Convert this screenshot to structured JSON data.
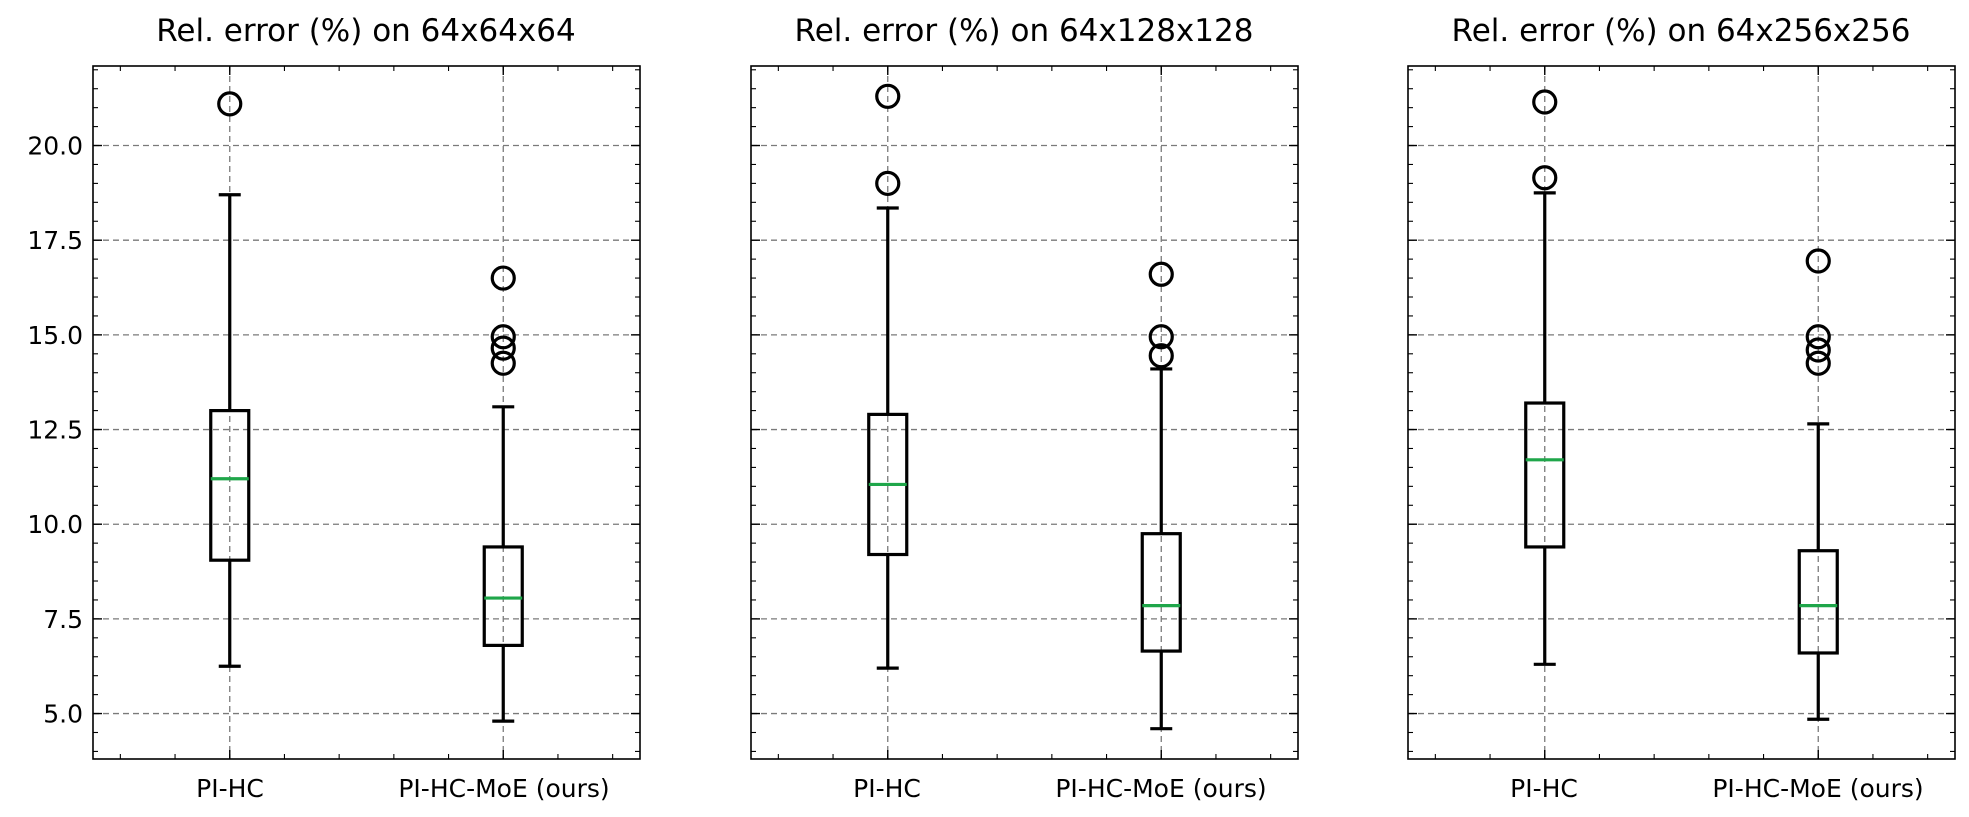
{
  "chart_data": [
    {
      "type": "box",
      "title": "Rel. error (%) on 64x64x64",
      "categories": [
        "PI-HC",
        "PI-HC-MoE (ours)"
      ],
      "ylim": [
        3.8,
        22.1
      ],
      "yticks": [
        5.0,
        7.5,
        10.0,
        12.5,
        15.0,
        17.5,
        20.0
      ],
      "ytick_labels": [
        "5.0",
        "7.5",
        "10.0",
        "12.5",
        "15.0",
        "17.5",
        "20.0"
      ],
      "show_yticklabels": true,
      "grid": true,
      "boxes": [
        {
          "category": "PI-HC",
          "whisker_low": 6.25,
          "q1": 9.05,
          "median": 11.2,
          "q3": 13.0,
          "whisker_high": 18.7,
          "outliers": [
            21.1
          ]
        },
        {
          "category": "PI-HC-MoE (ours)",
          "whisker_low": 4.8,
          "q1": 6.8,
          "median": 8.05,
          "q3": 9.4,
          "whisker_high": 13.1,
          "outliers": [
            16.5,
            14.95,
            14.65,
            14.25
          ]
        }
      ]
    },
    {
      "type": "box",
      "title": "Rel. error (%) on 64x128x128",
      "categories": [
        "PI-HC",
        "PI-HC-MoE (ours)"
      ],
      "ylim": [
        3.8,
        22.1
      ],
      "yticks": [
        5.0,
        7.5,
        10.0,
        12.5,
        15.0,
        17.5,
        20.0
      ],
      "ytick_labels": [
        "5.0",
        "7.5",
        "10.0",
        "12.5",
        "15.0",
        "17.5",
        "20.0"
      ],
      "show_yticklabels": false,
      "grid": true,
      "boxes": [
        {
          "category": "PI-HC",
          "whisker_low": 6.2,
          "q1": 9.2,
          "median": 11.05,
          "q3": 12.9,
          "whisker_high": 18.35,
          "outliers": [
            21.3,
            19.0
          ]
        },
        {
          "category": "PI-HC-MoE (ours)",
          "whisker_low": 4.6,
          "q1": 6.65,
          "median": 7.85,
          "q3": 9.75,
          "whisker_high": 14.1,
          "outliers": [
            16.6,
            14.95,
            14.45
          ]
        }
      ]
    },
    {
      "type": "box",
      "title": "Rel. error (%) on 64x256x256",
      "categories": [
        "PI-HC",
        "PI-HC-MoE (ours)"
      ],
      "ylim": [
        3.8,
        22.1
      ],
      "yticks": [
        5.0,
        7.5,
        10.0,
        12.5,
        15.0,
        17.5,
        20.0
      ],
      "ytick_labels": [
        "5.0",
        "7.5",
        "10.0",
        "12.5",
        "15.0",
        "17.5",
        "20.0"
      ],
      "show_yticklabels": false,
      "grid": true,
      "boxes": [
        {
          "category": "PI-HC",
          "whisker_low": 6.3,
          "q1": 9.4,
          "median": 11.7,
          "q3": 13.2,
          "whisker_high": 18.75,
          "outliers": [
            21.15,
            19.15
          ]
        },
        {
          "category": "PI-HC-MoE (ours)",
          "whisker_low": 4.85,
          "q1": 6.6,
          "median": 7.85,
          "q3": 9.3,
          "whisker_high": 12.65,
          "outliers": [
            16.95,
            14.95,
            14.6,
            14.25
          ]
        }
      ]
    }
  ],
  "colors": {
    "median": "#1fa64a",
    "box": "#000000",
    "grid": "#7a7a7a",
    "background": "#ffffff"
  }
}
